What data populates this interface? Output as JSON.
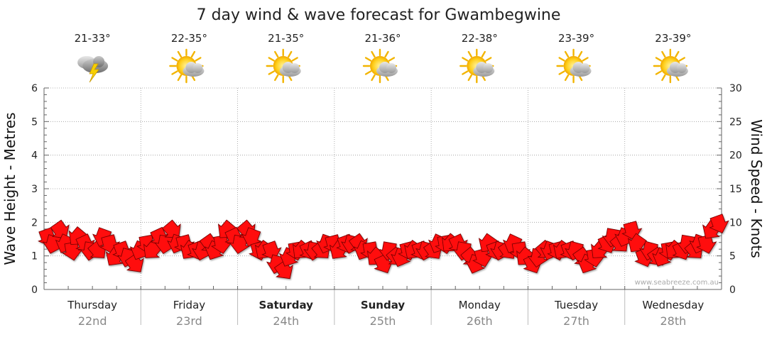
{
  "chart_data": {
    "type": "line",
    "title": "7 day wind & wave forecast for Gwambegwine",
    "ylabel_left": "Wave Height - Metres",
    "ylabel_right": "Wind Speed - Knots",
    "ylim_left": [
      0,
      6
    ],
    "ylim_right": [
      0,
      30
    ],
    "yticks_left": [
      "0",
      "1",
      "2",
      "3",
      "4",
      "5",
      "6"
    ],
    "yticks_right": [
      "0",
      "5",
      "10",
      "15",
      "20",
      "25",
      "30"
    ],
    "grid": true,
    "credit": "www.seabreeze.com.au",
    "days": [
      {
        "name": "Thursday",
        "date": "22nd",
        "temp": "21-33°",
        "icon": "storm-cloud-icon",
        "bold": false
      },
      {
        "name": "Friday",
        "date": "23rd",
        "temp": "22-35°",
        "icon": "sun-cloud-icon",
        "bold": false
      },
      {
        "name": "Saturday",
        "date": "24th",
        "temp": "21-35°",
        "icon": "sun-cloud-icon",
        "bold": true
      },
      {
        "name": "Sunday",
        "date": "25th",
        "temp": "21-36°",
        "icon": "sun-cloud-icon",
        "bold": true
      },
      {
        "name": "Monday",
        "date": "26th",
        "temp": "22-38°",
        "icon": "sun-cloud-icon",
        "bold": false
      },
      {
        "name": "Tuesday",
        "date": "27th",
        "temp": "23-39°",
        "icon": "sun-cloud-icon",
        "bold": false
      },
      {
        "name": "Wednesday",
        "date": "28th",
        "temp": "23-39°",
        "icon": "sun-cloud-icon",
        "bold": false
      }
    ],
    "series": [
      {
        "unit": "knots",
        "color": "#ff0000",
        "values": [
          8,
          7,
          9,
          7,
          6,
          8,
          7,
          6,
          6,
          8,
          7,
          5,
          6,
          5,
          4,
          6,
          7,
          6,
          8,
          7,
          9,
          7,
          7,
          6,
          6,
          6,
          7,
          6,
          7,
          9,
          8,
          7,
          9,
          8,
          6,
          6,
          6,
          4,
          3,
          5,
          6,
          6,
          6,
          6,
          6,
          7,
          7,
          6,
          7,
          7,
          7,
          6,
          6,
          5,
          4,
          6,
          5,
          5,
          6,
          6,
          6,
          6,
          6,
          7,
          7,
          7,
          7,
          6,
          5,
          4,
          5,
          7,
          6,
          6,
          6,
          7,
          6,
          5,
          4,
          5,
          6,
          6,
          6,
          6,
          6,
          6,
          5,
          4,
          5,
          6,
          7,
          8,
          7,
          8,
          9,
          7,
          5,
          6,
          5,
          5,
          6,
          6,
          6,
          7,
          6,
          7,
          7,
          9,
          10
        ]
      }
    ]
  }
}
